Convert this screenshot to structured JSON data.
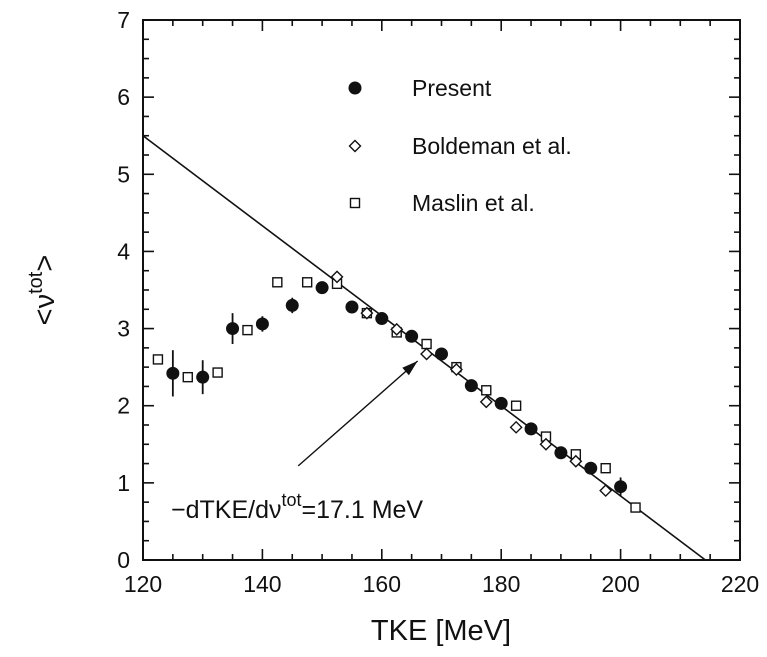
{
  "chart_data": {
    "type": "scatter",
    "xlabel": "TKE  [MeV]",
    "ylabel": {
      "base": "<ν",
      "sup": "tot",
      "close": ">"
    },
    "xlim": [
      120,
      220
    ],
    "ylim": [
      0,
      7
    ],
    "xticks": [
      120,
      140,
      160,
      180,
      200,
      220
    ],
    "yticks": [
      0,
      1,
      2,
      3,
      4,
      5,
      6,
      7
    ],
    "grid": false,
    "legend_position": "top-right",
    "series": [
      {
        "name": "Present",
        "marker": "filled-circle",
        "points": [
          {
            "x": 125,
            "y": 2.42,
            "err": 0.3
          },
          {
            "x": 130,
            "y": 2.37,
            "err": 0.22
          },
          {
            "x": 135,
            "y": 3.0,
            "err": 0.2
          },
          {
            "x": 140,
            "y": 3.06,
            "err": 0.1
          },
          {
            "x": 145,
            "y": 3.3,
            "err": 0.1
          },
          {
            "x": 150,
            "y": 3.53,
            "err": 0.06
          },
          {
            "x": 155,
            "y": 3.28,
            "err": 0.05
          },
          {
            "x": 160,
            "y": 3.13,
            "err": 0.04
          },
          {
            "x": 165,
            "y": 2.9,
            "err": 0.04
          },
          {
            "x": 170,
            "y": 2.67,
            "err": 0.04
          },
          {
            "x": 175,
            "y": 2.26,
            "err": 0.04
          },
          {
            "x": 180,
            "y": 2.03,
            "err": 0.04
          },
          {
            "x": 185,
            "y": 1.7,
            "err": 0.05
          },
          {
            "x": 190,
            "y": 1.39,
            "err": 0.05
          },
          {
            "x": 195,
            "y": 1.19,
            "err": 0.06
          },
          {
            "x": 200,
            "y": 0.95,
            "err": 0.12
          }
        ]
      },
      {
        "name": "Boldeman et al.",
        "marker": "open-diamond",
        "points": [
          {
            "x": 152.5,
            "y": 3.67
          },
          {
            "x": 157.5,
            "y": 3.2
          },
          {
            "x": 162.5,
            "y": 2.99
          },
          {
            "x": 167.5,
            "y": 2.67
          },
          {
            "x": 172.5,
            "y": 2.47
          },
          {
            "x": 177.5,
            "y": 2.05
          },
          {
            "x": 182.5,
            "y": 1.72
          },
          {
            "x": 187.5,
            "y": 1.5
          },
          {
            "x": 192.5,
            "y": 1.28
          },
          {
            "x": 197.5,
            "y": 0.9
          }
        ]
      },
      {
        "name": "Maslin et al.",
        "marker": "open-square",
        "points": [
          {
            "x": 122.5,
            "y": 2.6
          },
          {
            "x": 127.5,
            "y": 2.37
          },
          {
            "x": 132.5,
            "y": 2.43
          },
          {
            "x": 137.5,
            "y": 2.98
          },
          {
            "x": 142.5,
            "y": 3.6
          },
          {
            "x": 147.5,
            "y": 3.6
          },
          {
            "x": 152.5,
            "y": 3.58
          },
          {
            "x": 157.5,
            "y": 3.2
          },
          {
            "x": 162.5,
            "y": 2.95
          },
          {
            "x": 167.5,
            "y": 2.8
          },
          {
            "x": 172.5,
            "y": 2.5
          },
          {
            "x": 177.5,
            "y": 2.2
          },
          {
            "x": 182.5,
            "y": 2.0
          },
          {
            "x": 187.5,
            "y": 1.6
          },
          {
            "x": 192.5,
            "y": 1.37
          },
          {
            "x": 197.5,
            "y": 1.19
          },
          {
            "x": 202.5,
            "y": 0.68
          }
        ]
      }
    ],
    "fit_line": {
      "x1": 120,
      "y1": 5.5,
      "x2": 214.2,
      "y2": 0
    },
    "annotation": {
      "text_prefix": "−dTKE/dν",
      "sup": "tot",
      "text_suffix": "=17.1  MeV",
      "arrow_from": {
        "x": 146,
        "y": 1.22
      },
      "arrow_to": {
        "x": 166,
        "y": 2.58
      }
    }
  }
}
